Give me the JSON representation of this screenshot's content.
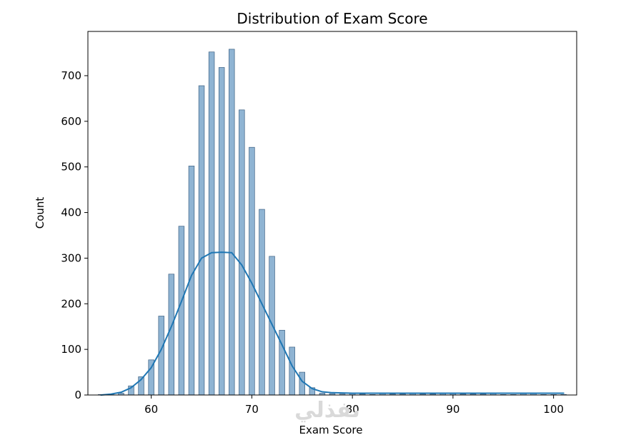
{
  "chart_data": {
    "type": "bar",
    "title": "Distribution of Exam Score",
    "xlabel": "Exam Score",
    "ylabel": "Count",
    "xlim": [
      53.7,
      102.3
    ],
    "ylim": [
      0,
      797
    ],
    "x_ticks": [
      60,
      70,
      80,
      90,
      100
    ],
    "y_ticks": [
      0,
      100,
      200,
      300,
      400,
      500,
      600,
      700
    ],
    "grid": false,
    "bar_color": "#8fb4d3",
    "bar_edge_color": "#3b5f82",
    "kde_color": "#1f77b4",
    "histogram": {
      "x": [
        55,
        56,
        57,
        58,
        59,
        60,
        61,
        62,
        63,
        64,
        65,
        66,
        67,
        68,
        69,
        70,
        71,
        72,
        73,
        74,
        75,
        76,
        77,
        78,
        79,
        80,
        81,
        82,
        83,
        84,
        85,
        86,
        87,
        88,
        89,
        90,
        91,
        92,
        93,
        94,
        95,
        96,
        97,
        98,
        99,
        100,
        101
      ],
      "values": [
        1,
        2,
        4,
        20,
        40,
        77,
        173,
        265,
        370,
        502,
        678,
        752,
        718,
        758,
        625,
        543,
        407,
        304,
        142,
        105,
        50,
        16,
        4,
        3,
        2,
        4,
        2,
        1,
        3,
        2,
        2,
        3,
        2,
        2,
        3,
        3,
        2,
        2,
        2,
        3,
        1,
        1,
        3,
        3,
        1,
        1,
        1
      ]
    },
    "kde": {
      "x": [
        55,
        56,
        57,
        58,
        59,
        60,
        61,
        62,
        63,
        64,
        65,
        66,
        67,
        68,
        69,
        70,
        71,
        72,
        73,
        74,
        75,
        76,
        77,
        78,
        80,
        85,
        90,
        95,
        100,
        101
      ],
      "y": [
        0,
        2,
        6,
        16,
        34,
        60,
        100,
        150,
        205,
        262,
        300,
        312,
        313,
        312,
        285,
        245,
        200,
        155,
        110,
        64,
        30,
        14,
        7,
        5,
        4,
        4,
        4,
        4,
        4,
        4
      ]
    }
  },
  "watermark": {
    "text": "نفذلي"
  }
}
